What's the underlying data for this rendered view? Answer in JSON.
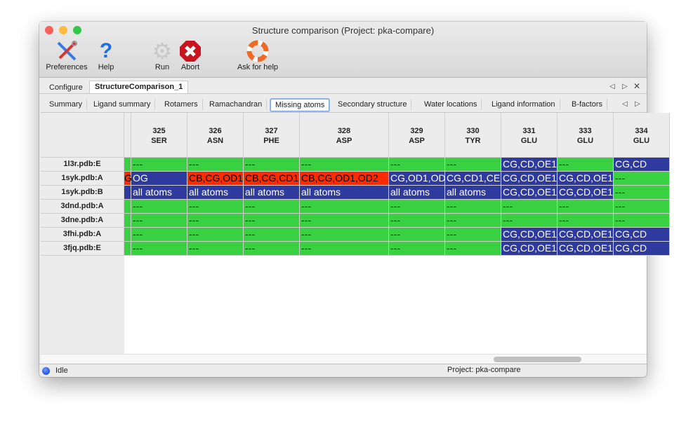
{
  "window": {
    "title": "Structure comparison (Project: pka-compare)"
  },
  "toolbar": [
    {
      "label": "Preferences",
      "icon": "preferences-tools-icon"
    },
    {
      "label": "Help",
      "icon": "help-question-icon"
    },
    {
      "label": "Run",
      "icon": "run-gear-icon"
    },
    {
      "label": "Abort",
      "icon": "abort-stop-icon"
    },
    {
      "label": "Ask for help",
      "icon": "lifebuoy-icon"
    }
  ],
  "tabs": [
    "Configure",
    "StructureComparison_1"
  ],
  "active_tab": "StructureComparison_1",
  "subtabs": [
    "Summary",
    "Ligand summary",
    "Rotamers",
    "Ramachandran",
    "Missing atoms",
    "Secondary structure",
    "Water locations",
    "Ligand information",
    "B-factors"
  ],
  "active_subtab": "Missing atoms",
  "colors": {
    "ok": "#39d041",
    "missing_red": "#ff2a00",
    "missing_blue": "#2e3a9e"
  },
  "columns": [
    {
      "num": "",
      "res": ""
    },
    {
      "num": "325",
      "res": "SER"
    },
    {
      "num": "326",
      "res": "ASN"
    },
    {
      "num": "327",
      "res": "PHE"
    },
    {
      "num": "328",
      "res": "ASP"
    },
    {
      "num": "329",
      "res": "ASP"
    },
    {
      "num": "330",
      "res": "TYR"
    },
    {
      "num": "331",
      "res": "GLU"
    },
    {
      "num": "333",
      "res": "GLU"
    },
    {
      "num": "334",
      "res": "GLU"
    }
  ],
  "rows": [
    {
      "label": "1l3r.pdb:E",
      "cells": [
        [
          "g",
          ""
        ],
        [
          "g",
          "---"
        ],
        [
          "g",
          "---"
        ],
        [
          "g",
          "---"
        ],
        [
          "g",
          "---"
        ],
        [
          "g",
          "---"
        ],
        [
          "g",
          "---"
        ],
        [
          "b",
          "CG,CD,OE1"
        ],
        [
          "g",
          "---"
        ],
        [
          "b",
          "CG,CD"
        ]
      ]
    },
    {
      "label": "1syk.pdb:A",
      "cells": [
        [
          "r",
          "G"
        ],
        [
          "b",
          "OG"
        ],
        [
          "r",
          "CB,CG,OD1"
        ],
        [
          "r",
          "CB,CG,CD1"
        ],
        [
          "r",
          "CB,CG,OD1,OD2"
        ],
        [
          "b",
          "CG,OD1,OD"
        ],
        [
          "b",
          "CG,CD1,CE"
        ],
        [
          "b",
          "CG,CD,OE1"
        ],
        [
          "b",
          "CG,CD,OE1"
        ],
        [
          "g",
          "---"
        ]
      ]
    },
    {
      "label": "1syk.pdb:B",
      "cells": [
        [
          "b",
          ""
        ],
        [
          "b",
          "all atoms"
        ],
        [
          "b",
          "all atoms"
        ],
        [
          "b",
          "all atoms"
        ],
        [
          "b",
          "all atoms"
        ],
        [
          "b",
          "all atoms"
        ],
        [
          "b",
          "all atoms"
        ],
        [
          "b",
          "CG,CD,OE1"
        ],
        [
          "b",
          "CG,CD,OE1"
        ],
        [
          "g",
          "---"
        ]
      ]
    },
    {
      "label": "3dnd.pdb:A",
      "cells": [
        [
          "g",
          ""
        ],
        [
          "g",
          "---"
        ],
        [
          "g",
          "---"
        ],
        [
          "g",
          "---"
        ],
        [
          "g",
          "---"
        ],
        [
          "g",
          "---"
        ],
        [
          "g",
          "---"
        ],
        [
          "g",
          "---"
        ],
        [
          "g",
          "---"
        ],
        [
          "g",
          "---"
        ]
      ]
    },
    {
      "label": "3dne.pdb:A",
      "cells": [
        [
          "g",
          ""
        ],
        [
          "g",
          "---"
        ],
        [
          "g",
          "---"
        ],
        [
          "g",
          "---"
        ],
        [
          "g",
          "---"
        ],
        [
          "g",
          "---"
        ],
        [
          "g",
          "---"
        ],
        [
          "g",
          "---"
        ],
        [
          "g",
          "---"
        ],
        [
          "g",
          "---"
        ]
      ]
    },
    {
      "label": "3fhi.pdb:A",
      "cells": [
        [
          "g",
          ""
        ],
        [
          "g",
          "---"
        ],
        [
          "g",
          "---"
        ],
        [
          "g",
          "---"
        ],
        [
          "g",
          "---"
        ],
        [
          "g",
          "---"
        ],
        [
          "g",
          "---"
        ],
        [
          "b",
          "CG,CD,OE1"
        ],
        [
          "b",
          "CG,CD,OE1"
        ],
        [
          "b",
          "CG,CD"
        ]
      ]
    },
    {
      "label": "3fjq.pdb:E",
      "cells": [
        [
          "g",
          ""
        ],
        [
          "g",
          "---"
        ],
        [
          "g",
          "---"
        ],
        [
          "g",
          "---"
        ],
        [
          "g",
          "---"
        ],
        [
          "g",
          "---"
        ],
        [
          "g",
          "---"
        ],
        [
          "b",
          "CG,CD,OE1"
        ],
        [
          "b",
          "CG,CD,OE1"
        ],
        [
          "b",
          "CG,CD"
        ]
      ]
    }
  ],
  "status": {
    "text": "Idle",
    "project": "Project: pka-compare"
  }
}
